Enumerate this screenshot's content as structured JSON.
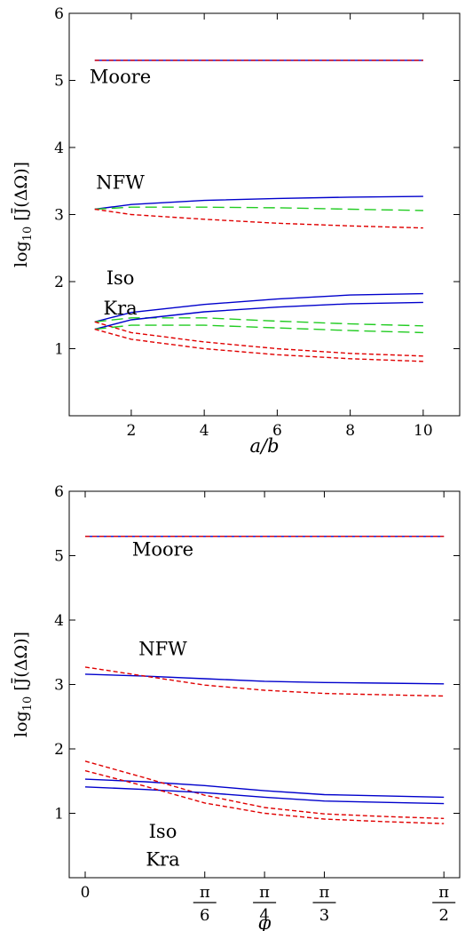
{
  "chart_data": [
    {
      "type": "line",
      "xlabel": "a/b",
      "ylabel": "log10 [J̄(ΔΩ)]",
      "ylabel_parts": {
        "base": "log",
        "sub": "10",
        "rest": " [J̄(ΔΩ)]"
      },
      "xlim": [
        0.3,
        11
      ],
      "ylim": [
        0,
        6
      ],
      "x_ticks": [
        2,
        4,
        6,
        8,
        10
      ],
      "x_tick_labels": [
        "2",
        "4",
        "6",
        "8",
        "10"
      ],
      "y_ticks": [
        1,
        2,
        3,
        4,
        5,
        6
      ],
      "y_tick_labels": [
        "1",
        "2",
        "3",
        "4",
        "5",
        "6"
      ],
      "grid": false,
      "legend": "none",
      "annotations": [
        {
          "text": "Moore",
          "x": 1.7,
          "y": 5.05
        },
        {
          "text": "NFW",
          "x": 1.7,
          "y": 3.48
        },
        {
          "text": "Iso",
          "x": 1.7,
          "y": 2.05
        },
        {
          "text": "Kra",
          "x": 1.7,
          "y": 1.6
        }
      ],
      "series": [
        {
          "group": "Moore",
          "style": "solid",
          "color": "#0000cc",
          "x": [
            1,
            2,
            4,
            6,
            8,
            10
          ],
          "y": [
            5.3,
            5.3,
            5.3,
            5.3,
            5.3,
            5.3
          ]
        },
        {
          "group": "Moore",
          "style": "short-dash",
          "color": "#e00000",
          "x": [
            1,
            2,
            4,
            6,
            8,
            10
          ],
          "y": [
            5.3,
            5.3,
            5.3,
            5.3,
            5.3,
            5.3
          ]
        },
        {
          "group": "NFW",
          "style": "solid",
          "color": "#0000cc",
          "x": [
            1,
            2,
            4,
            6,
            8,
            10
          ],
          "y": [
            3.08,
            3.15,
            3.21,
            3.24,
            3.26,
            3.27
          ]
        },
        {
          "group": "NFW",
          "style": "long-dash",
          "color": "#22cc22",
          "x": [
            1,
            2,
            4,
            6,
            8,
            10
          ],
          "y": [
            3.08,
            3.11,
            3.11,
            3.1,
            3.08,
            3.06
          ]
        },
        {
          "group": "NFW",
          "style": "short-dash",
          "color": "#e00000",
          "x": [
            1,
            2,
            4,
            6,
            8,
            10
          ],
          "y": [
            3.08,
            3.0,
            2.93,
            2.87,
            2.83,
            2.8
          ]
        },
        {
          "group": "Iso",
          "style": "solid",
          "color": "#0000cc",
          "x": [
            1,
            2,
            4,
            6,
            8,
            10
          ],
          "y": [
            1.4,
            1.54,
            1.66,
            1.74,
            1.8,
            1.82
          ]
        },
        {
          "group": "Iso",
          "style": "long-dash",
          "color": "#22cc22",
          "x": [
            1,
            2,
            4,
            6,
            8,
            10
          ],
          "y": [
            1.4,
            1.46,
            1.46,
            1.41,
            1.37,
            1.34
          ]
        },
        {
          "group": "Iso",
          "style": "short-dash",
          "color": "#e00000",
          "x": [
            1,
            2,
            4,
            6,
            8,
            10
          ],
          "y": [
            1.4,
            1.24,
            1.1,
            1.0,
            0.93,
            0.89
          ]
        },
        {
          "group": "Kra",
          "style": "solid",
          "color": "#0000cc",
          "x": [
            1,
            2,
            4,
            6,
            8,
            10
          ],
          "y": [
            1.29,
            1.43,
            1.55,
            1.62,
            1.67,
            1.69
          ]
        },
        {
          "group": "Kra",
          "style": "long-dash",
          "color": "#22cc22",
          "x": [
            1,
            2,
            4,
            6,
            8,
            10
          ],
          "y": [
            1.29,
            1.35,
            1.35,
            1.31,
            1.27,
            1.24
          ]
        },
        {
          "group": "Kra",
          "style": "short-dash",
          "color": "#e00000",
          "x": [
            1,
            2,
            4,
            6,
            8,
            10
          ],
          "y": [
            1.29,
            1.14,
            1.0,
            0.91,
            0.85,
            0.81
          ]
        }
      ]
    },
    {
      "type": "line",
      "xlabel": "φ",
      "ylabel": "log10 [J̄(ΔΩ)]",
      "ylabel_parts": {
        "base": "log",
        "sub": "10",
        "rest": " [J̄(ΔΩ)]"
      },
      "xlim": [
        -0.07,
        1.64
      ],
      "ylim": [
        0,
        6
      ],
      "x_ticks": [
        0,
        0.5236,
        0.7854,
        1.0472,
        1.5708
      ],
      "x_tick_labels": [
        "0",
        "π/6",
        "π/4",
        "π/3",
        "π/2"
      ],
      "y_ticks": [
        1,
        2,
        3,
        4,
        5,
        6
      ],
      "y_tick_labels": [
        "1",
        "2",
        "3",
        "4",
        "5",
        "6"
      ],
      "grid": false,
      "legend": "none",
      "annotations": [
        {
          "text": "Moore",
          "x": 0.34,
          "y": 5.1
        },
        {
          "text": "NFW",
          "x": 0.34,
          "y": 3.55
        },
        {
          "text": "Iso",
          "x": 0.34,
          "y": 0.72
        },
        {
          "text": "Kra",
          "x": 0.34,
          "y": 0.28
        }
      ],
      "series": [
        {
          "group": "Moore",
          "style": "solid",
          "color": "#0000cc",
          "x": [
            0,
            0.2618,
            0.5236,
            0.7854,
            1.0472,
            1.309,
            1.5708
          ],
          "y": [
            5.3,
            5.3,
            5.3,
            5.3,
            5.3,
            5.3,
            5.3
          ]
        },
        {
          "group": "Moore",
          "style": "short-dash",
          "color": "#e00000",
          "x": [
            0,
            0.2618,
            0.5236,
            0.7854,
            1.0472,
            1.309,
            1.5708
          ],
          "y": [
            5.3,
            5.3,
            5.3,
            5.3,
            5.3,
            5.3,
            5.3
          ]
        },
        {
          "group": "NFW",
          "style": "solid",
          "color": "#0000cc",
          "x": [
            0,
            0.2618,
            0.5236,
            0.7854,
            1.0472,
            1.309,
            1.5708
          ],
          "y": [
            3.16,
            3.13,
            3.09,
            3.05,
            3.03,
            3.02,
            3.01
          ]
        },
        {
          "group": "NFW",
          "style": "short-dash",
          "color": "#e00000",
          "x": [
            0,
            0.2618,
            0.5236,
            0.7854,
            1.0472,
            1.309,
            1.5708
          ],
          "y": [
            3.27,
            3.13,
            2.99,
            2.91,
            2.86,
            2.84,
            2.82
          ]
        },
        {
          "group": "Iso",
          "style": "solid",
          "color": "#0000cc",
          "x": [
            0,
            0.2618,
            0.5236,
            0.7854,
            1.0472,
            1.309,
            1.5708
          ],
          "y": [
            1.53,
            1.49,
            1.43,
            1.35,
            1.29,
            1.27,
            1.25
          ]
        },
        {
          "group": "Iso",
          "style": "short-dash",
          "color": "#e00000",
          "x": [
            0,
            0.2618,
            0.5236,
            0.7854,
            1.0472,
            1.309,
            1.5708
          ],
          "y": [
            1.81,
            1.55,
            1.28,
            1.09,
            0.99,
            0.95,
            0.92
          ]
        },
        {
          "group": "Kra",
          "style": "solid",
          "color": "#0000cc",
          "x": [
            0,
            0.2618,
            0.5236,
            0.7854,
            1.0472,
            1.309,
            1.5708
          ],
          "y": [
            1.41,
            1.37,
            1.32,
            1.25,
            1.19,
            1.17,
            1.15
          ]
        },
        {
          "group": "Kra",
          "style": "short-dash",
          "color": "#e00000",
          "x": [
            0,
            0.2618,
            0.5236,
            0.7854,
            1.0472,
            1.309,
            1.5708
          ],
          "y": [
            1.66,
            1.42,
            1.16,
            1.0,
            0.91,
            0.87,
            0.84
          ]
        }
      ]
    }
  ]
}
